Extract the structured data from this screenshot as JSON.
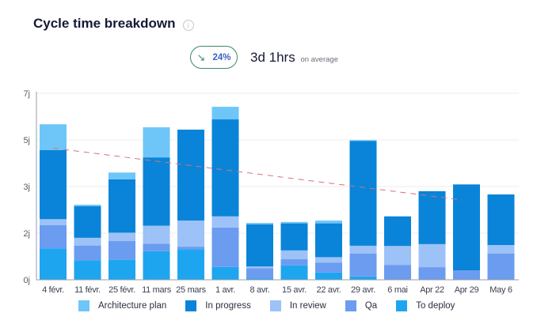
{
  "header": {
    "title": "Cycle time breakdown",
    "info_icon": "info-circle-icon",
    "trend_icon": "arrow-down-right-icon",
    "trend_percent": "24%",
    "average_value": "3d 1hrs",
    "average_suffix": "on average"
  },
  "chart_data": {
    "type": "bar",
    "stacked": true,
    "title": "",
    "xlabel": "",
    "ylabel": "",
    "yticks": [
      0,
      2,
      3,
      5,
      7
    ],
    "ytick_labels": [
      "0j",
      "2j",
      "3j",
      "5j",
      "7j"
    ],
    "ylim": [
      0,
      7
    ],
    "y_scale": "non-linear (evenly spaced ticks)",
    "grid": true,
    "legend_position": "bottom",
    "categories": [
      "4 févr.",
      "11 févr.",
      "25 févr.",
      "11 mars",
      "25 mars",
      "1 avr.",
      "8 avr.",
      "15 avr.",
      "22 avr.",
      "29 avr.",
      "6 mai",
      "Apr 22",
      "Apr 29",
      "May 6"
    ],
    "series": [
      {
        "name": "To deploy",
        "color": "#1ea5f0",
        "values": [
          1.35,
          0.84,
          0.86,
          1.23,
          1.31,
          0.55,
          0.05,
          0.62,
          0.31,
          0.14,
          0,
          0,
          0,
          0
        ]
      },
      {
        "name": "Qa",
        "color": "#6b9cf0",
        "values": [
          0.82,
          0.63,
          0.8,
          0.32,
          0.11,
          1.57,
          0.44,
          0.26,
          0.43,
          0.99,
          0.64,
          0.54,
          0.4,
          1.13
        ]
      },
      {
        "name": "In review",
        "color": "#9cc2f7",
        "values": [
          0.13,
          0.33,
          0.35,
          0.61,
          0.85,
          0.24,
          0.08,
          0.38,
          0.23,
          0.33,
          0.81,
          0.99,
          0,
          0.36
        ]
      },
      {
        "name": "In progress",
        "color": "#0a84d8",
        "values": [
          2.26,
          0.78,
          1.3,
          2.09,
          3.17,
          3.52,
          1.62,
          0.95,
          1.24,
          3.5,
          0.91,
          1.37,
          2.69,
          1.34
        ]
      },
      {
        "name": "Architecture plan",
        "color": "#6ec6f8",
        "values": [
          1.11,
          0.03,
          0.29,
          1.29,
          0,
          0.54,
          0.03,
          0.03,
          0.06,
          0.03,
          0,
          0,
          0,
          0
        ]
      }
    ],
    "trend_line": {
      "color": "#d9707a",
      "style": "dashed",
      "from": {
        "category": "4 févr.",
        "value": 4.65
      },
      "to": {
        "category": "Apr 29",
        "value": 2.71
      }
    }
  },
  "legend": [
    {
      "label": "Architecture plan",
      "color": "#6ec6f8"
    },
    {
      "label": "In progress",
      "color": "#0a84d8"
    },
    {
      "label": "In review",
      "color": "#9cc2f7"
    },
    {
      "label": "Qa",
      "color": "#6b9cf0"
    },
    {
      "label": "To deploy",
      "color": "#1ea5f0"
    }
  ]
}
